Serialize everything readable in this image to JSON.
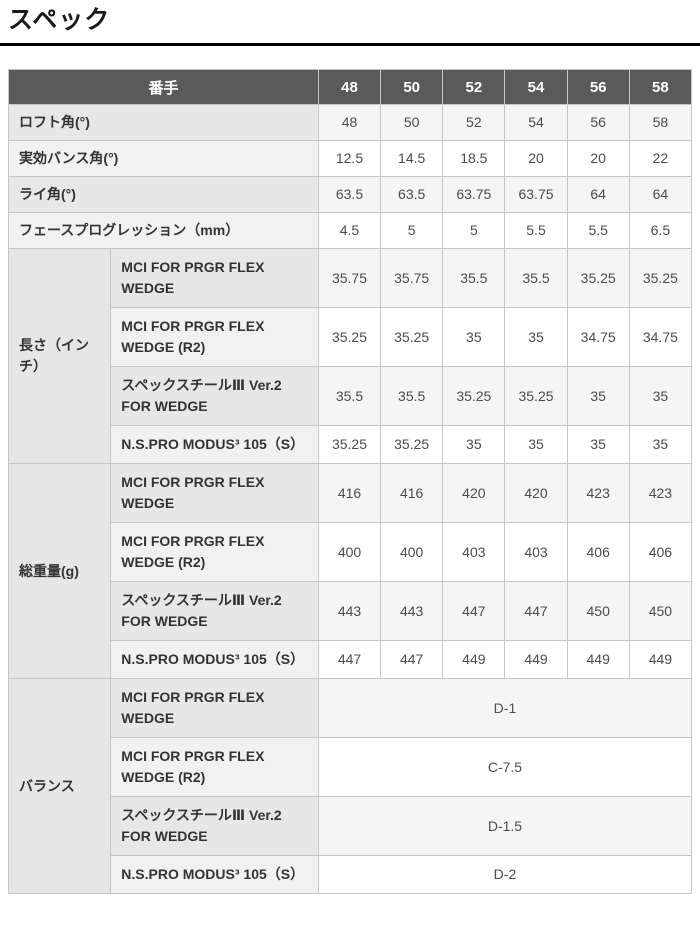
{
  "page": {
    "title": "スペック"
  },
  "table": {
    "header": {
      "label": "番手",
      "clubs": [
        "48",
        "50",
        "52",
        "54",
        "56",
        "58"
      ]
    },
    "simple_rows": [
      {
        "label": "ロフト角(°)",
        "values": [
          "48",
          "50",
          "52",
          "54",
          "56",
          "58"
        ]
      },
      {
        "label": "実効バンス角(°)",
        "values": [
          "12.5",
          "14.5",
          "18.5",
          "20",
          "20",
          "22"
        ]
      },
      {
        "label": "ライ角(°)",
        "values": [
          "63.5",
          "63.5",
          "63.75",
          "63.75",
          "64",
          "64"
        ]
      },
      {
        "label": "フェースプログレッション（mm）",
        "values": [
          "4.5",
          "5",
          "5",
          "5.5",
          "5.5",
          "6.5"
        ]
      }
    ],
    "groups": [
      {
        "label": "長さ（インチ）",
        "rows": [
          {
            "shaft": "MCI FOR PRGR FLEX WEDGE",
            "values": [
              "35.75",
              "35.75",
              "35.5",
              "35.5",
              "35.25",
              "35.25"
            ]
          },
          {
            "shaft": "MCI FOR PRGR FLEX WEDGE (R2)",
            "values": [
              "35.25",
              "35.25",
              "35",
              "35",
              "34.75",
              "34.75"
            ]
          },
          {
            "shaft": "スペックスチールⅢ Ver.2 FOR WEDGE",
            "values": [
              "35.5",
              "35.5",
              "35.25",
              "35.25",
              "35",
              "35"
            ]
          },
          {
            "shaft": "N.S.PRO MODUS³ 105（S）",
            "values": [
              "35.25",
              "35.25",
              "35",
              "35",
              "35",
              "35"
            ]
          }
        ]
      },
      {
        "label": "総重量(g)",
        "rows": [
          {
            "shaft": "MCI FOR PRGR FLEX WEDGE",
            "values": [
              "416",
              "416",
              "420",
              "420",
              "423",
              "423"
            ]
          },
          {
            "shaft": "MCI FOR PRGR FLEX WEDGE (R2)",
            "values": [
              "400",
              "400",
              "403",
              "403",
              "406",
              "406"
            ]
          },
          {
            "shaft": "スペックスチールⅢ Ver.2 FOR WEDGE",
            "values": [
              "443",
              "443",
              "447",
              "447",
              "450",
              "450"
            ]
          },
          {
            "shaft": "N.S.PRO MODUS³ 105（S）",
            "values": [
              "447",
              "447",
              "449",
              "449",
              "449",
              "449"
            ]
          }
        ]
      },
      {
        "label": "バランス",
        "rows": [
          {
            "shaft": "MCI FOR PRGR FLEX WEDGE",
            "merged_value": "D-1"
          },
          {
            "shaft": "MCI FOR PRGR FLEX WEDGE (R2)",
            "merged_value": "C-7.5"
          },
          {
            "shaft": "スペックスチールⅢ Ver.2 FOR WEDGE",
            "merged_value": "D-1.5"
          },
          {
            "shaft": "N.S.PRO MODUS³ 105（S）",
            "merged_value": "D-2"
          }
        ]
      }
    ]
  },
  "colors": {
    "header_bg": "#5a5a5a",
    "header_text": "#ffffff",
    "border": "#c6c6c6",
    "row_odd_bg": "#f5f5f5",
    "row_even_bg": "#ffffff",
    "label_odd_bg": "#e7e7e7",
    "label_even_bg": "#f1f1f1",
    "group_label_bg": "#e6e6e6",
    "title_rule": "#000000"
  }
}
